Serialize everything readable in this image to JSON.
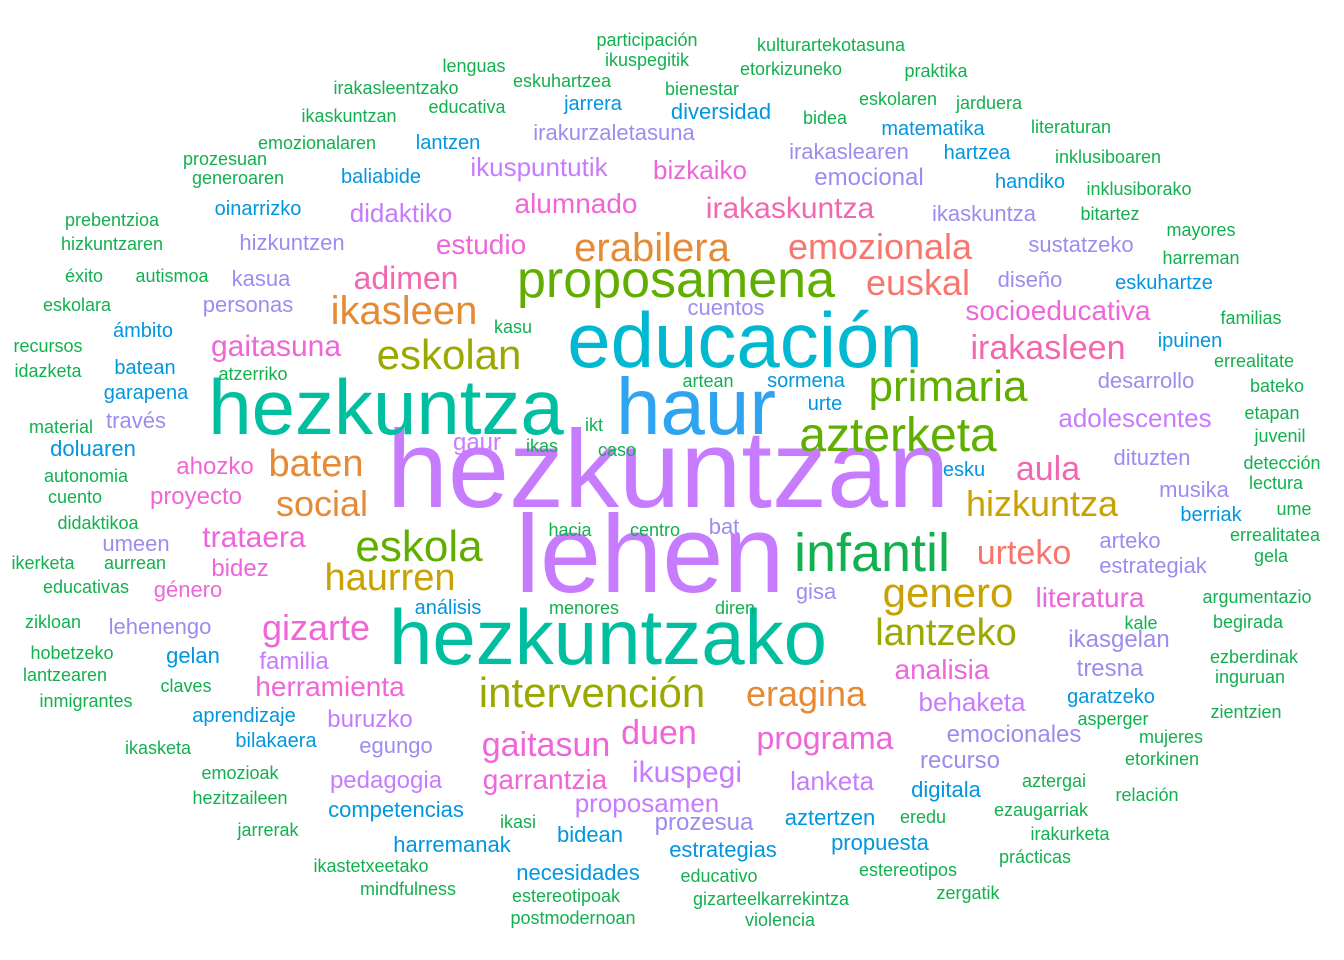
{
  "palette": {
    "lavender": "#9D8CF0",
    "violet": "#C77CFF",
    "magenta": "#EE66D8",
    "pink": "#F268B0",
    "salmon": "#F8766D",
    "orange": "#E58B35",
    "mustard": "#C9A100",
    "olive": "#9BA800",
    "green": "#5FAE00",
    "emerald": "#12B04F",
    "teal": "#00BFA0",
    "cyan": "#00B8D0",
    "sky": "#2EA4F0",
    "blue": "#0096E0"
  },
  "words": [
    {
      "text": "hezkuntzan",
      "color": "violet"
    },
    {
      "text": "lehen",
      "color": "violet"
    },
    {
      "text": "hezkuntza",
      "color": "teal"
    },
    {
      "text": "educación",
      "color": "cyan"
    },
    {
      "text": "haur",
      "color": "sky"
    },
    {
      "text": "hezkuntzako",
      "color": "teal"
    },
    {
      "text": "infantil",
      "color": "emerald"
    },
    {
      "text": "proposamena",
      "color": "green"
    },
    {
      "text": "azterketa",
      "color": "green"
    },
    {
      "text": "primaria",
      "color": "green"
    },
    {
      "text": "intervención",
      "color": "olive"
    },
    {
      "text": "eskola",
      "color": "green"
    },
    {
      "text": "eskolan",
      "color": "olive"
    },
    {
      "text": "genero",
      "color": "mustard"
    },
    {
      "text": "lantzeko",
      "color": "olive"
    },
    {
      "text": "erabilera",
      "color": "orange"
    },
    {
      "text": "ikasleen",
      "color": "orange"
    },
    {
      "text": "haurren",
      "color": "mustard"
    },
    {
      "text": "emozionala",
      "color": "salmon"
    },
    {
      "text": "euskal",
      "color": "salmon"
    },
    {
      "text": "baten",
      "color": "orange"
    },
    {
      "text": "hizkuntza",
      "color": "mustard"
    },
    {
      "text": "urteko",
      "color": "salmon"
    },
    {
      "text": "eragina",
      "color": "orange"
    },
    {
      "text": "irakasleen",
      "color": "pink"
    },
    {
      "text": "social",
      "color": "orange"
    },
    {
      "text": "adimen",
      "color": "pink"
    },
    {
      "text": "gaitasun",
      "color": "magenta"
    },
    {
      "text": "duen",
      "color": "magenta"
    },
    {
      "text": "programa",
      "color": "magenta"
    },
    {
      "text": "gizarte",
      "color": "magenta"
    },
    {
      "text": "aula",
      "color": "pink"
    },
    {
      "text": "gaitasuna",
      "color": "magenta"
    },
    {
      "text": "trataera",
      "color": "magenta"
    },
    {
      "text": "irakaskuntza",
      "color": "pink"
    },
    {
      "text": "alumnado",
      "color": "magenta"
    },
    {
      "text": "socioeducativa",
      "color": "magenta"
    },
    {
      "text": "estudio",
      "color": "magenta"
    },
    {
      "text": "literatura",
      "color": "magenta"
    },
    {
      "text": "herramienta",
      "color": "magenta"
    },
    {
      "text": "analisia",
      "color": "magenta"
    },
    {
      "text": "ikuspegi",
      "color": "violet"
    },
    {
      "text": "garrantzia",
      "color": "magenta"
    },
    {
      "text": "proposamen",
      "color": "violet"
    },
    {
      "text": "lanketa",
      "color": "violet"
    },
    {
      "text": "behaketa",
      "color": "violet"
    },
    {
      "text": "adolescentes",
      "color": "violet"
    },
    {
      "text": "ikuspuntutik",
      "color": "violet"
    },
    {
      "text": "bizkaiko",
      "color": "magenta"
    },
    {
      "text": "didaktiko",
      "color": "violet"
    },
    {
      "text": "familia",
      "color": "violet"
    },
    {
      "text": "ahozko",
      "color": "magenta"
    },
    {
      "text": "proyecto",
      "color": "magenta"
    },
    {
      "text": "bidez",
      "color": "magenta"
    },
    {
      "text": "género",
      "color": "magenta"
    },
    {
      "text": "gaur",
      "color": "violet"
    },
    {
      "text": "buruzko",
      "color": "violet"
    },
    {
      "text": "pedagogia",
      "color": "violet"
    },
    {
      "text": "prozesua",
      "color": "lavender"
    },
    {
      "text": "emocionales",
      "color": "lavender"
    },
    {
      "text": "recurso",
      "color": "lavender"
    },
    {
      "text": "ikasgelan",
      "color": "lavender"
    },
    {
      "text": "tresna",
      "color": "lavender"
    },
    {
      "text": "estrategiak",
      "color": "lavender"
    },
    {
      "text": "arteko",
      "color": "lavender"
    },
    {
      "text": "musika",
      "color": "lavender"
    },
    {
      "text": "dituzten",
      "color": "lavender"
    },
    {
      "text": "desarrollo",
      "color": "lavender"
    },
    {
      "text": "sustatzeko",
      "color": "lavender"
    },
    {
      "text": "diseño",
      "color": "lavender"
    },
    {
      "text": "ikaskuntza",
      "color": "lavender"
    },
    {
      "text": "emocional",
      "color": "lavender"
    },
    {
      "text": "irakaslearen",
      "color": "lavender"
    },
    {
      "text": "irakurzaletasuna",
      "color": "lavender"
    },
    {
      "text": "cuentos",
      "color": "lavender"
    },
    {
      "text": "hizkuntzen",
      "color": "lavender"
    },
    {
      "text": "kasua",
      "color": "lavender"
    },
    {
      "text": "personas",
      "color": "lavender"
    },
    {
      "text": "través",
      "color": "lavender"
    },
    {
      "text": "umeen",
      "color": "lavender"
    },
    {
      "text": "lehenengo",
      "color": "lavender"
    },
    {
      "text": "egungo",
      "color": "lavender"
    },
    {
      "text": "gisa",
      "color": "lavender"
    },
    {
      "text": "bat",
      "color": "lavender"
    },
    {
      "text": "análisis",
      "color": "blue"
    },
    {
      "text": "menores",
      "color": "emerald"
    },
    {
      "text": "diren",
      "color": "emerald"
    },
    {
      "text": "hacia",
      "color": "emerald"
    },
    {
      "text": "centro",
      "color": "emerald"
    },
    {
      "text": "ikt",
      "color": "emerald"
    },
    {
      "text": "ikas",
      "color": "emerald"
    },
    {
      "text": "caso",
      "color": "emerald"
    },
    {
      "text": "kasu",
      "color": "emerald"
    },
    {
      "text": "artean",
      "color": "emerald"
    },
    {
      "text": "sormena",
      "color": "blue"
    },
    {
      "text": "urte",
      "color": "blue"
    },
    {
      "text": "esku",
      "color": "blue"
    },
    {
      "text": "berriak",
      "color": "blue"
    },
    {
      "text": "kale",
      "color": "emerald"
    },
    {
      "text": "ipuinen",
      "color": "blue"
    },
    {
      "text": "eskuhartze",
      "color": "blue"
    },
    {
      "text": "garatzeko",
      "color": "blue"
    },
    {
      "text": "asperger",
      "color": "emerald"
    },
    {
      "text": "digitala",
      "color": "blue"
    },
    {
      "text": "aztertzen",
      "color": "blue"
    },
    {
      "text": "propuesta",
      "color": "blue"
    },
    {
      "text": "estrategias",
      "color": "blue"
    },
    {
      "text": "bidean",
      "color": "blue"
    },
    {
      "text": "harremanak",
      "color": "blue"
    },
    {
      "text": "competencias",
      "color": "blue"
    },
    {
      "text": "necesidades",
      "color": "blue"
    },
    {
      "text": "bilakaera",
      "color": "blue"
    },
    {
      "text": "aprendizaje",
      "color": "blue"
    },
    {
      "text": "gelan",
      "color": "blue"
    },
    {
      "text": "doluaren",
      "color": "blue"
    },
    {
      "text": "garapena",
      "color": "blue"
    },
    {
      "text": "batean",
      "color": "blue"
    },
    {
      "text": "ámbito",
      "color": "blue"
    },
    {
      "text": "oinarrizko",
      "color": "blue"
    },
    {
      "text": "baliabide",
      "color": "blue"
    },
    {
      "text": "lantzen",
      "color": "blue"
    },
    {
      "text": "jarrera",
      "color": "blue"
    },
    {
      "text": "diversidad",
      "color": "blue"
    },
    {
      "text": "matematika",
      "color": "blue"
    },
    {
      "text": "hartzea",
      "color": "blue"
    },
    {
      "text": "handiko",
      "color": "blue"
    },
    {
      "text": "participación",
      "color": "emerald"
    },
    {
      "text": "kulturartekotasuna",
      "color": "emerald"
    },
    {
      "text": "ikuspegitik",
      "color": "emerald"
    },
    {
      "text": "lenguas",
      "color": "emerald"
    },
    {
      "text": "eskuhartzea",
      "color": "emerald"
    },
    {
      "text": "etorkizuneko",
      "color": "emerald"
    },
    {
      "text": "praktika",
      "color": "emerald"
    },
    {
      "text": "irakasleentzako",
      "color": "emerald"
    },
    {
      "text": "bienestar",
      "color": "emerald"
    },
    {
      "text": "educativa",
      "color": "emerald"
    },
    {
      "text": "eskolaren",
      "color": "emerald"
    },
    {
      "text": "jarduera",
      "color": "emerald"
    },
    {
      "text": "ikaskuntzan",
      "color": "emerald"
    },
    {
      "text": "bidea",
      "color": "emerald"
    },
    {
      "text": "literaturan",
      "color": "emerald"
    },
    {
      "text": "emozionalaren",
      "color": "emerald"
    },
    {
      "text": "prozesuan",
      "color": "emerald"
    },
    {
      "text": "inklusiboaren",
      "color": "emerald"
    },
    {
      "text": "generoaren",
      "color": "emerald"
    },
    {
      "text": "inklusiborako",
      "color": "emerald"
    },
    {
      "text": "prebentzioa",
      "color": "emerald"
    },
    {
      "text": "bitartez",
      "color": "emerald"
    },
    {
      "text": "mayores",
      "color": "emerald"
    },
    {
      "text": "hizkuntzaren",
      "color": "emerald"
    },
    {
      "text": "harreman",
      "color": "emerald"
    },
    {
      "text": "éxito",
      "color": "emerald"
    },
    {
      "text": "autismoa",
      "color": "emerald"
    },
    {
      "text": "eskolara",
      "color": "emerald"
    },
    {
      "text": "familias",
      "color": "emerald"
    },
    {
      "text": "recursos",
      "color": "emerald"
    },
    {
      "text": "idazketa",
      "color": "emerald"
    },
    {
      "text": "errealitate",
      "color": "emerald"
    },
    {
      "text": "atzerriko",
      "color": "emerald"
    },
    {
      "text": "bateko",
      "color": "emerald"
    },
    {
      "text": "material",
      "color": "emerald"
    },
    {
      "text": "etapan",
      "color": "emerald"
    },
    {
      "text": "juvenil",
      "color": "emerald"
    },
    {
      "text": "autonomia",
      "color": "emerald"
    },
    {
      "text": "detección",
      "color": "emerald"
    },
    {
      "text": "cuento",
      "color": "emerald"
    },
    {
      "text": "lectura",
      "color": "emerald"
    },
    {
      "text": "didaktikoa",
      "color": "emerald"
    },
    {
      "text": "errealitatea",
      "color": "emerald"
    },
    {
      "text": "ikerketa",
      "color": "emerald"
    },
    {
      "text": "aurrean",
      "color": "emerald"
    },
    {
      "text": "gela",
      "color": "emerald"
    },
    {
      "text": "educativas",
      "color": "emerald"
    },
    {
      "text": "argumentazio",
      "color": "emerald"
    },
    {
      "text": "zikloan",
      "color": "emerald"
    },
    {
      "text": "begirada",
      "color": "emerald"
    },
    {
      "text": "hobetzeko",
      "color": "emerald"
    },
    {
      "text": "ezberdinak",
      "color": "emerald"
    },
    {
      "text": "lantzearen",
      "color": "emerald"
    },
    {
      "text": "claves",
      "color": "emerald"
    },
    {
      "text": "inguruan",
      "color": "emerald"
    },
    {
      "text": "inmigrantes",
      "color": "emerald"
    },
    {
      "text": "zientzien",
      "color": "emerald"
    },
    {
      "text": "ikasketa",
      "color": "emerald"
    },
    {
      "text": "mujeres",
      "color": "emerald"
    },
    {
      "text": "emozioak",
      "color": "emerald"
    },
    {
      "text": "etorkinen",
      "color": "emerald"
    },
    {
      "text": "aztergai",
      "color": "emerald"
    },
    {
      "text": "hezitzaileen",
      "color": "emerald"
    },
    {
      "text": "relación",
      "color": "emerald"
    },
    {
      "text": "ezaugarriak",
      "color": "emerald"
    },
    {
      "text": "jarrerak",
      "color": "emerald"
    },
    {
      "text": "ikasi",
      "color": "emerald"
    },
    {
      "text": "eredu",
      "color": "emerald"
    },
    {
      "text": "irakurketa",
      "color": "emerald"
    },
    {
      "text": "ikastetxeetako",
      "color": "emerald"
    },
    {
      "text": "prácticas",
      "color": "emerald"
    },
    {
      "text": "estereotipos",
      "color": "emerald"
    },
    {
      "text": "mindfulness",
      "color": "emerald"
    },
    {
      "text": "educativo",
      "color": "emerald"
    },
    {
      "text": "zergatik",
      "color": "emerald"
    },
    {
      "text": "estereotipoak",
      "color": "emerald"
    },
    {
      "text": "gizarteelkarrekintza",
      "color": "emerald"
    },
    {
      "text": "postmodernoan",
      "color": "emerald"
    },
    {
      "text": "violencia",
      "color": "emerald"
    },
    {
      "text": "ume",
      "color": "emerald"
    }
  ]
}
